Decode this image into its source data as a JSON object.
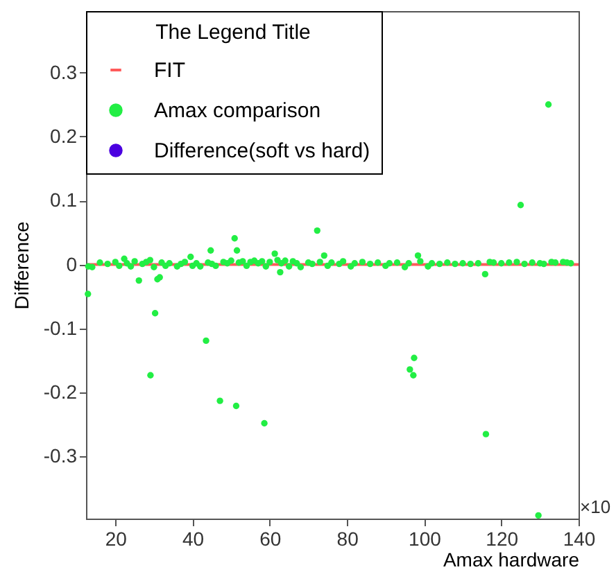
{
  "chart_data": {
    "type": "scatter",
    "xlabel": "Amax hardware",
    "ylabel": "Difference",
    "legend_title": "The Legend Title",
    "xlim": [
      12.4,
      140
    ],
    "xticks": [
      20,
      40,
      60,
      80,
      100,
      120,
      140
    ],
    "ylim": [
      -0.397,
      0.396
    ],
    "yticks": [
      -0.3,
      -0.2,
      -0.1,
      0,
      0.1,
      0.2,
      0.3
    ],
    "grid": false,
    "legend": "top left",
    "annotations": [
      "×10"
    ],
    "series": [
      {
        "name": "FIT",
        "type": "line",
        "color": "#ff5a5a",
        "line_style": "solid",
        "x": [
          12.8,
          140
        ],
        "values": [
          0,
          0
        ]
      },
      {
        "name": "Amax comparison",
        "marker": "circle",
        "color": "#22ee44",
        "x": [
          132.2,
          125.0,
          72.3,
          50.9,
          51.5,
          44.7,
          61.3,
          74.1,
          98.4,
          39.5,
          22.3,
          62.7,
          115.8,
          26.1,
          31.5,
          30.9,
          12.9,
          30.3,
          43.5,
          97.4,
          29.1,
          47.1,
          51.3,
          58.6,
          96.3,
          97.2,
          116.0,
          129.6,
          13,
          14,
          16,
          18,
          20,
          21,
          23,
          24,
          25,
          27,
          28,
          29,
          30,
          32,
          33,
          34,
          36,
          37,
          38,
          40,
          41,
          42,
          44,
          45,
          46,
          48,
          49,
          50,
          52,
          53,
          54,
          55,
          56,
          57,
          58,
          59,
          60,
          62,
          63,
          64,
          65,
          66,
          67,
          68,
          70,
          71,
          73,
          75,
          76,
          78,
          79,
          81,
          82,
          84,
          86,
          88,
          90,
          91,
          93,
          95,
          96,
          99,
          101,
          102,
          104,
          106,
          108,
          110,
          112,
          114,
          117,
          118,
          120,
          122,
          124,
          126,
          128,
          130,
          131,
          133,
          134,
          136,
          137,
          138
        ],
        "values": [
          0.25,
          0.093,
          0.053,
          0.041,
          0.022,
          0.022,
          0.017,
          0.014,
          0.014,
          0.012,
          0.009,
          -0.012,
          -0.015,
          -0.025,
          -0.02,
          -0.023,
          -0.046,
          -0.076,
          -0.119,
          -0.146,
          -0.173,
          -0.213,
          -0.221,
          -0.248,
          -0.164,
          -0.173,
          -0.265,
          -0.392,
          -0.003,
          -0.004,
          0.003,
          0.001,
          0.004,
          -0.002,
          0.002,
          -0.003,
          0.005,
          0.001,
          0.004,
          0.007,
          -0.004,
          0.003,
          -0.002,
          0.002,
          -0.003,
          0.001,
          0.004,
          -0.002,
          0.002,
          -0.003,
          0.003,
          0.001,
          -0.002,
          0.004,
          0.002,
          0.006,
          0.003,
          0.005,
          -0.002,
          0.004,
          0.006,
          0.002,
          0.005,
          -0.003,
          0.004,
          0.007,
          0.002,
          0.006,
          -0.003,
          0.005,
          0.002,
          -0.004,
          0.003,
          0.001,
          0.004,
          -0.002,
          0.003,
          0.001,
          0.005,
          -0.003,
          0.002,
          0.004,
          0.001,
          0.003,
          -0.002,
          0.002,
          0.003,
          -0.004,
          0.002,
          0.005,
          -0.003,
          0.002,
          0.001,
          0.003,
          0.001,
          0.002,
          0.001,
          0.002,
          0.004,
          0.003,
          0.002,
          0.003,
          0.004,
          0.001,
          0.003,
          0.002,
          0.001,
          0.004,
          0.003,
          0.004,
          0.003,
          0.002
        ]
      },
      {
        "name": "Difference(soft vs hard)",
        "marker": "circle",
        "color": "#4b00e0"
      }
    ]
  }
}
